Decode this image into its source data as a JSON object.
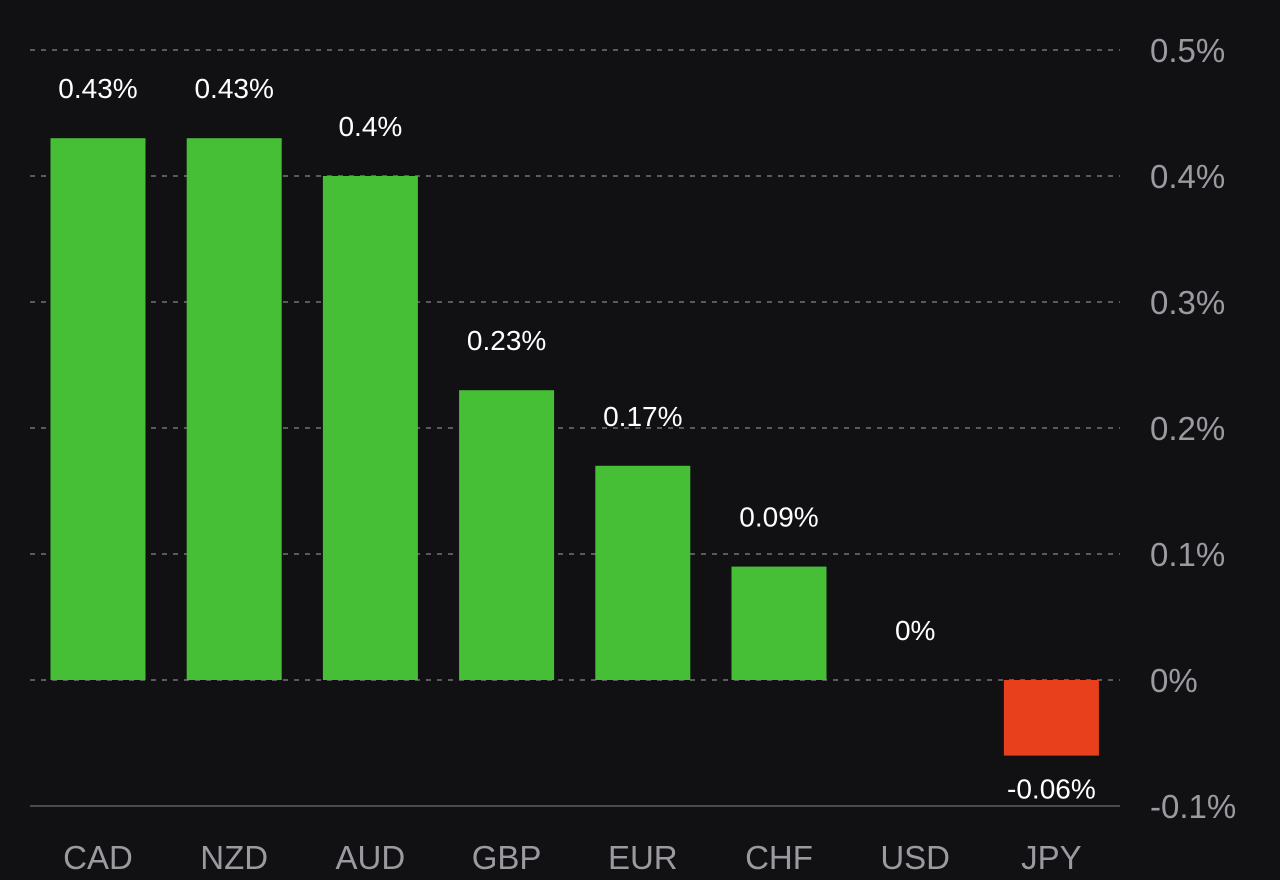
{
  "chart_data": {
    "type": "bar",
    "title": "",
    "xlabel": "",
    "ylabel": "",
    "categories": [
      "CAD",
      "NZD",
      "AUD",
      "GBP",
      "EUR",
      "CHF",
      "USD",
      "JPY"
    ],
    "values": [
      0.43,
      0.43,
      0.4,
      0.23,
      0.17,
      0.09,
      0,
      -0.06
    ],
    "value_labels": [
      "0.43%",
      "0.43%",
      "0.4%",
      "0.23%",
      "0.17%",
      "0.09%",
      "0%",
      "-0.06%"
    ],
    "ylim": [
      -0.1,
      0.5
    ],
    "y_ticks": [
      0.5,
      0.4,
      0.3,
      0.2,
      0.1,
      0,
      -0.1
    ],
    "y_tick_labels": [
      "0.5%",
      "0.4%",
      "0.3%",
      "0.2%",
      "0.1%",
      "0%",
      "-0.1%"
    ],
    "grid": true,
    "y_axis_side": "right",
    "colors": {
      "positive": "#46bf36",
      "negative": "#e8401c",
      "background": "#111114"
    }
  }
}
